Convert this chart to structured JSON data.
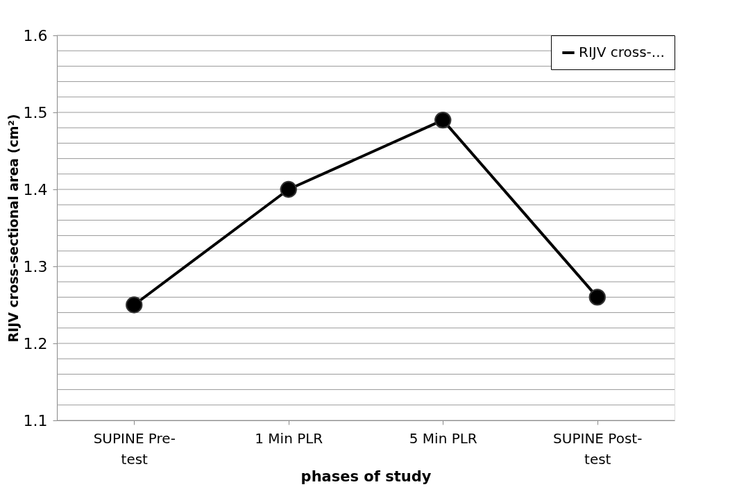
{
  "chart_data": {
    "type": "line",
    "xlabel": "phases of study",
    "ylabel": "RIJV cross-sectional  area (cm²)",
    "categories": [
      "SUPINE Pre-test",
      "1 Min PLR",
      "5 Min PLR",
      "SUPINE Post-test"
    ],
    "series": [
      {
        "name": "RIJV cross-...",
        "color": "#000000",
        "values": [
          1.25,
          1.4,
          1.49,
          1.26
        ]
      }
    ],
    "ylim": [
      1.1,
      1.6
    ],
    "yticks": [
      1.1,
      {
        "value": 1.12,
        "label": null
      },
      {
        "value": 1.14,
        "label": null
      },
      {
        "value": 1.16,
        "label": null
      },
      {
        "value": 1.18,
        "label": null
      },
      1.2,
      {
        "value": 1.22,
        "label": null
      },
      {
        "value": 1.24,
        "label": null
      },
      {
        "value": 1.26,
        "label": null
      },
      {
        "value": 1.28,
        "label": null
      },
      1.3,
      {
        "value": 1.32,
        "label": null
      },
      {
        "value": 1.34,
        "label": null
      },
      {
        "value": 1.36,
        "label": null
      },
      {
        "value": 1.38,
        "label": null
      },
      1.4,
      {
        "value": 1.42,
        "label": null
      },
      {
        "value": 1.44,
        "label": null
      },
      {
        "value": 1.46,
        "label": null
      },
      {
        "value": 1.48,
        "label": null
      },
      1.5,
      {
        "value": 1.52,
        "label": null
      },
      {
        "value": 1.54,
        "label": null
      },
      {
        "value": 1.56,
        "label": null
      },
      {
        "value": 1.58,
        "label": null
      },
      1.6
    ],
    "grid": "y",
    "legend": "top right",
    "marker": "circle",
    "line_style": "solid"
  }
}
